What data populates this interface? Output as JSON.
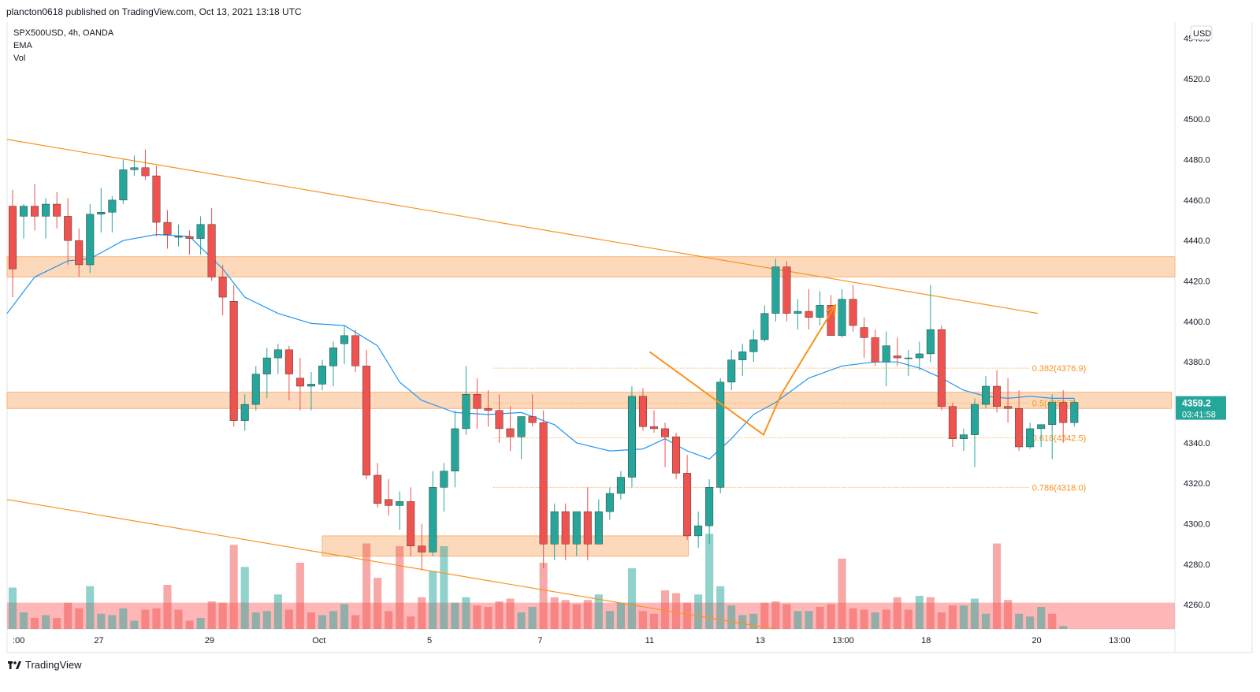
{
  "header": {
    "published": "plancton0618 published on TradingView.com, Oct 13, 2021 13:18 UTC"
  },
  "legend": {
    "symbol": "SPX500USD, 4h, OANDA",
    "ema": "EMA",
    "vol": "Vol"
  },
  "footer": {
    "brand": "TradingView",
    "logo_icon": "tradingview-logo-icon"
  },
  "colors": {
    "up": "#26a69a",
    "down": "#ef5350",
    "ema": "#2196f3",
    "trend": "#f7941d",
    "zone": "#fcc9a0"
  },
  "chart_data": {
    "type": "candlestick",
    "currency": "USD",
    "ylim": [
      4248,
      4548
    ],
    "y_ticks": [
      "4540.0",
      "4520.0",
      "4500.0",
      "4480.0",
      "4460.0",
      "4440.0",
      "4420.0",
      "4400.0",
      "4380.0",
      "4360.0",
      "4340.0",
      "4320.0",
      "4300.0",
      "4280.0",
      "4260.0"
    ],
    "y_tick_values": [
      4540,
      4520,
      4500,
      4480,
      4460,
      4440,
      4420,
      4400,
      4380,
      4360,
      4340,
      4320,
      4300,
      4280,
      4260
    ],
    "x_ticks": [
      {
        "label": ":00",
        "x": 0
      },
      {
        "label": "27",
        "x": 7.8
      },
      {
        "label": "29",
        "x": 17.8
      },
      {
        "label": "Oct",
        "x": 27.7
      },
      {
        "label": "5",
        "x": 37.7
      },
      {
        "label": "7",
        "x": 47.7
      },
      {
        "label": "11",
        "x": 57.6
      },
      {
        "label": "13",
        "x": 67.6
      },
      {
        "label": "13:00",
        "x": 75.1
      },
      {
        "label": "18",
        "x": 82.6
      },
      {
        "label": "20",
        "x": 92.6
      },
      {
        "label": "13:00",
        "x": 100.1
      }
    ],
    "xlim": [
      -0.5,
      105.1
    ],
    "candles": [
      [
        4457,
        4465,
        4412,
        4426
      ],
      [
        4452,
        4458,
        4441,
        4457
      ],
      [
        4457,
        4468,
        4445,
        4452
      ],
      [
        4452,
        4461,
        4441,
        4458
      ],
      [
        4458,
        4464,
        4446,
        4452
      ],
      [
        4452,
        4461,
        4428,
        4440
      ],
      [
        4440,
        4446,
        4422,
        4428
      ],
      [
        4428,
        4458,
        4424,
        4453
      ],
      [
        4453,
        4466,
        4444,
        4454
      ],
      [
        4454,
        4462,
        4444,
        4460
      ],
      [
        4460,
        4480,
        4458,
        4475
      ],
      [
        4475,
        4482,
        4472,
        4476
      ],
      [
        4476,
        4485,
        4470,
        4472
      ],
      [
        4472,
        4477,
        4442,
        4449
      ],
      [
        4449,
        4455,
        4436,
        4443
      ],
      [
        4442,
        4448,
        4437,
        4442
      ],
      [
        4442,
        4445,
        4433,
        4441
      ],
      [
        4441,
        4452,
        4433,
        4448
      ],
      [
        4448,
        4456,
        4420,
        4422
      ],
      [
        4422,
        4428,
        4403,
        4412
      ],
      [
        4410,
        4418,
        4348,
        4351
      ],
      [
        4351,
        4364,
        4346,
        4359
      ],
      [
        4359,
        4378,
        4356,
        4374
      ],
      [
        4374,
        4387,
        4362,
        4382
      ],
      [
        4382,
        4389,
        4374,
        4386
      ],
      [
        4386,
        4388,
        4361,
        4374
      ],
      [
        4372,
        4382,
        4356,
        4368
      ],
      [
        4368,
        4375,
        4356,
        4369
      ],
      [
        4369,
        4381,
        4366,
        4378
      ],
      [
        4378,
        4390,
        4368,
        4387
      ],
      [
        4389,
        4398,
        4379,
        4393
      ],
      [
        4393,
        4396,
        4375,
        4378
      ],
      [
        4378,
        4386,
        4322,
        4324
      ],
      [
        4324,
        4330,
        4308,
        4310
      ],
      [
        4312,
        4322,
        4304,
        4309
      ],
      [
        4309,
        4316,
        4297,
        4311
      ],
      [
        4311,
        4318,
        4284,
        4289
      ],
      [
        4289,
        4300,
        4277,
        4286
      ],
      [
        4286,
        4326,
        4284,
        4318
      ],
      [
        4318,
        4330,
        4306,
        4326
      ],
      [
        4326,
        4356,
        4318,
        4347
      ],
      [
        4347,
        4378,
        4344,
        4364
      ],
      [
        4364,
        4372,
        4347,
        4357
      ],
      [
        4357,
        4366,
        4348,
        4356
      ],
      [
        4356,
        4364,
        4340,
        4347
      ],
      [
        4347,
        4358,
        4336,
        4343
      ],
      [
        4343,
        4352,
        4332,
        4353
      ],
      [
        4353,
        4364,
        4348,
        4350
      ],
      [
        4350,
        4356,
        4278,
        4290
      ],
      [
        4290,
        4310,
        4282,
        4306
      ],
      [
        4306,
        4310,
        4282,
        4290
      ],
      [
        4290,
        4304,
        4284,
        4306
      ],
      [
        4306,
        4318,
        4282,
        4290
      ],
      [
        4290,
        4312,
        4290,
        4306
      ],
      [
        4306,
        4318,
        4302,
        4315
      ],
      [
        4315,
        4326,
        4312,
        4323
      ],
      [
        4323,
        4368,
        4318,
        4363
      ],
      [
        4363,
        4367,
        4346,
        4348
      ],
      [
        4348,
        4356,
        4345,
        4347
      ],
      [
        4347,
        4350,
        4328,
        4343
      ],
      [
        4343,
        4345,
        4322,
        4325
      ],
      [
        4325,
        4334,
        4292,
        4294
      ],
      [
        4294,
        4306,
        4288,
        4299
      ],
      [
        4299,
        4322,
        4290,
        4318
      ],
      [
        4318,
        4372,
        4315,
        4370
      ],
      [
        4370,
        4386,
        4366,
        4381
      ],
      [
        4381,
        4389,
        4373,
        4385
      ],
      [
        4385,
        4396,
        4380,
        4391
      ],
      [
        4391,
        4408,
        4390,
        4404
      ],
      [
        4404,
        4431,
        4400,
        4427
      ],
      [
        4427,
        4430,
        4400,
        4404
      ],
      [
        4404,
        4411,
        4396,
        4405
      ],
      [
        4405,
        4416,
        4396,
        4402
      ],
      [
        4402,
        4415,
        4398,
        4408
      ],
      [
        4408,
        4413,
        4393,
        4393
      ],
      [
        4393,
        4416,
        4392,
        4411
      ],
      [
        4411,
        4418,
        4395,
        4398
      ],
      [
        4397,
        4402,
        4382,
        4392
      ],
      [
        4392,
        4396,
        4378,
        4380
      ],
      [
        4380,
        4395,
        4368,
        4388
      ],
      [
        4383,
        4392,
        4378,
        4382
      ],
      [
        4382,
        4386,
        4373,
        4382
      ],
      [
        4382,
        4390,
        4376,
        4384
      ],
      [
        4384,
        4418,
        4380,
        4396
      ],
      [
        4396,
        4398,
        4356,
        4358
      ],
      [
        4358,
        4360,
        4338,
        4342
      ],
      [
        4342,
        4347,
        4336,
        4344
      ],
      [
        4344,
        4362,
        4328,
        4359
      ],
      [
        4359,
        4373,
        4357,
        4368
      ],
      [
        4368,
        4376,
        4355,
        4358
      ],
      [
        4358,
        4372,
        4350,
        4357
      ],
      [
        4357,
        4366,
        4336,
        4338
      ],
      [
        4338,
        4350,
        4337,
        4347
      ],
      [
        4347,
        4348,
        4338,
        4349
      ],
      [
        4349,
        4364,
        4332,
        4360
      ],
      [
        4360,
        4366,
        4340,
        4350
      ],
      [
        4350,
        4362,
        4348,
        4360
      ]
    ],
    "volume": [
      [
        0,
        30,
        0
      ],
      [
        1,
        12,
        0
      ],
      [
        2,
        8,
        1
      ],
      [
        3,
        10,
        0
      ],
      [
        4,
        8,
        1
      ],
      [
        5,
        19,
        1
      ],
      [
        6,
        15,
        1
      ],
      [
        7,
        31,
        0
      ],
      [
        8,
        11,
        0
      ],
      [
        9,
        10,
        0
      ],
      [
        10,
        15,
        0
      ],
      [
        11,
        6,
        0
      ],
      [
        12,
        14,
        1
      ],
      [
        13,
        15,
        1
      ],
      [
        14,
        32,
        1
      ],
      [
        15,
        14,
        1
      ],
      [
        16,
        6,
        1
      ],
      [
        17,
        8,
        0
      ],
      [
        18,
        20,
        1
      ],
      [
        19,
        19,
        1
      ],
      [
        20,
        61,
        1
      ],
      [
        21,
        45,
        0
      ],
      [
        22,
        12,
        0
      ],
      [
        23,
        13,
        0
      ],
      [
        24,
        25,
        0
      ],
      [
        25,
        14,
        1
      ],
      [
        26,
        48,
        1
      ],
      [
        27,
        12,
        1
      ],
      [
        28,
        10,
        0
      ],
      [
        29,
        13,
        0
      ],
      [
        30,
        18,
        0
      ],
      [
        31,
        10,
        1
      ],
      [
        32,
        62,
        1
      ],
      [
        33,
        37,
        1
      ],
      [
        34,
        13,
        1
      ],
      [
        35,
        60,
        1
      ],
      [
        36,
        9,
        1
      ],
      [
        37,
        23,
        1
      ],
      [
        38,
        42,
        0
      ],
      [
        39,
        60,
        0
      ],
      [
        40,
        19,
        0
      ],
      [
        41,
        23,
        0
      ],
      [
        42,
        17,
        1
      ],
      [
        43,
        16,
        1
      ],
      [
        44,
        20,
        1
      ],
      [
        45,
        22,
        1
      ],
      [
        46,
        12,
        0
      ],
      [
        47,
        16,
        0
      ],
      [
        48,
        48,
        1
      ],
      [
        49,
        23,
        1
      ],
      [
        50,
        21,
        1
      ],
      [
        51,
        18,
        1
      ],
      [
        52,
        21,
        1
      ],
      [
        53,
        25,
        0
      ],
      [
        54,
        13,
        0
      ],
      [
        55,
        19,
        0
      ],
      [
        56,
        44,
        0
      ],
      [
        57,
        13,
        1
      ],
      [
        58,
        11,
        1
      ],
      [
        59,
        28,
        1
      ],
      [
        60,
        26,
        1
      ],
      [
        61,
        19,
        1
      ],
      [
        62,
        25,
        0
      ],
      [
        63,
        69,
        0
      ],
      [
        64,
        31,
        0
      ],
      [
        65,
        17,
        0
      ],
      [
        66,
        10,
        0
      ],
      [
        67,
        11,
        0
      ],
      [
        68,
        19,
        1
      ],
      [
        69,
        20,
        1
      ],
      [
        70,
        18,
        1
      ],
      [
        71,
        13,
        0
      ],
      [
        72,
        13,
        0
      ],
      [
        73,
        16,
        1
      ],
      [
        74,
        18,
        1
      ],
      [
        75,
        51,
        1
      ],
      [
        76,
        15,
        1
      ],
      [
        77,
        14,
        1
      ],
      [
        78,
        12,
        0
      ],
      [
        79,
        14,
        1
      ],
      [
        80,
        23,
        1
      ],
      [
        81,
        14,
        1
      ],
      [
        82,
        24,
        0
      ],
      [
        83,
        23,
        1
      ],
      [
        84,
        12,
        1
      ],
      [
        85,
        17,
        1
      ],
      [
        86,
        17,
        0
      ],
      [
        87,
        22,
        0
      ],
      [
        88,
        11,
        0
      ],
      [
        89,
        62,
        1
      ],
      [
        90,
        21,
        1
      ],
      [
        91,
        11,
        0
      ],
      [
        92,
        9,
        0
      ],
      [
        93,
        16,
        0
      ],
      [
        94,
        11,
        1
      ],
      [
        95,
        2,
        0
      ]
    ],
    "ema": [
      [
        -0.5,
        4404
      ],
      [
        2,
        4422
      ],
      [
        5,
        4430
      ],
      [
        7,
        4431
      ],
      [
        10,
        4440
      ],
      [
        13,
        4443
      ],
      [
        16,
        4442
      ],
      [
        19,
        4426
      ],
      [
        21,
        4412
      ],
      [
        24,
        4404
      ],
      [
        27,
        4399
      ],
      [
        30,
        4398
      ],
      [
        33,
        4388
      ],
      [
        35,
        4370
      ],
      [
        37,
        4361
      ],
      [
        40,
        4355
      ],
      [
        43,
        4354
      ],
      [
        46,
        4355
      ],
      [
        49,
        4349
      ],
      [
        51,
        4340
      ],
      [
        54,
        4336
      ],
      [
        57,
        4337
      ],
      [
        59,
        4342
      ],
      [
        61,
        4336
      ],
      [
        63,
        4332
      ],
      [
        65,
        4342
      ],
      [
        67,
        4354
      ],
      [
        69,
        4360
      ],
      [
        72,
        4372
      ],
      [
        75,
        4378
      ],
      [
        78,
        4380
      ],
      [
        80,
        4380
      ],
      [
        82,
        4377
      ],
      [
        84,
        4372
      ],
      [
        86,
        4366
      ],
      [
        88,
        4363
      ],
      [
        90,
        4362
      ],
      [
        92,
        4363
      ],
      [
        94,
        4362
      ],
      [
        96,
        4362
      ]
    ],
    "zones": [
      {
        "x0": -0.5,
        "x1": 105.1,
        "y0": 4422,
        "y1": 4432
      },
      {
        "x0": -0.5,
        "x1": 104.8,
        "y0": 4357,
        "y1": 4365
      },
      {
        "x0": 28,
        "x1": 61.1,
        "y0": 4284,
        "y1": 4294
      },
      {
        "x0": -0.5,
        "x1": 105.1,
        "y0": 4248,
        "y1": 4261
      }
    ],
    "trendlines": [
      {
        "x0": -0.5,
        "y0": 4490,
        "x1": 92.7,
        "y1": 4404
      },
      {
        "x0": -0.5,
        "y0": 4312,
        "x1": 68.9,
        "y1": 4248
      }
    ],
    "swing_lines": [
      [
        57.6,
        4385
      ],
      [
        67.9,
        4344
      ],
      [
        69.5,
        4364
      ]
    ],
    "projection_arrow": {
      "x0": 69.5,
      "y0": 4364,
      "x1": 74.4,
      "y1": 4408
    },
    "fibonacci": [
      {
        "label": "0.382(4376.9)",
        "value": 4376.9
      },
      {
        "label": "0.5(4359.7)",
        "value": 4359.7
      },
      {
        "label": "0.618(4342.5)",
        "value": 4342.5
      },
      {
        "label": "0.786(4318.0)",
        "value": 4318.0
      }
    ],
    "fib_x_range": [
      43.5,
      91.9
    ],
    "last_price": "4359.2",
    "countdown": "03:41:58",
    "last_price_value": 4359.2
  }
}
